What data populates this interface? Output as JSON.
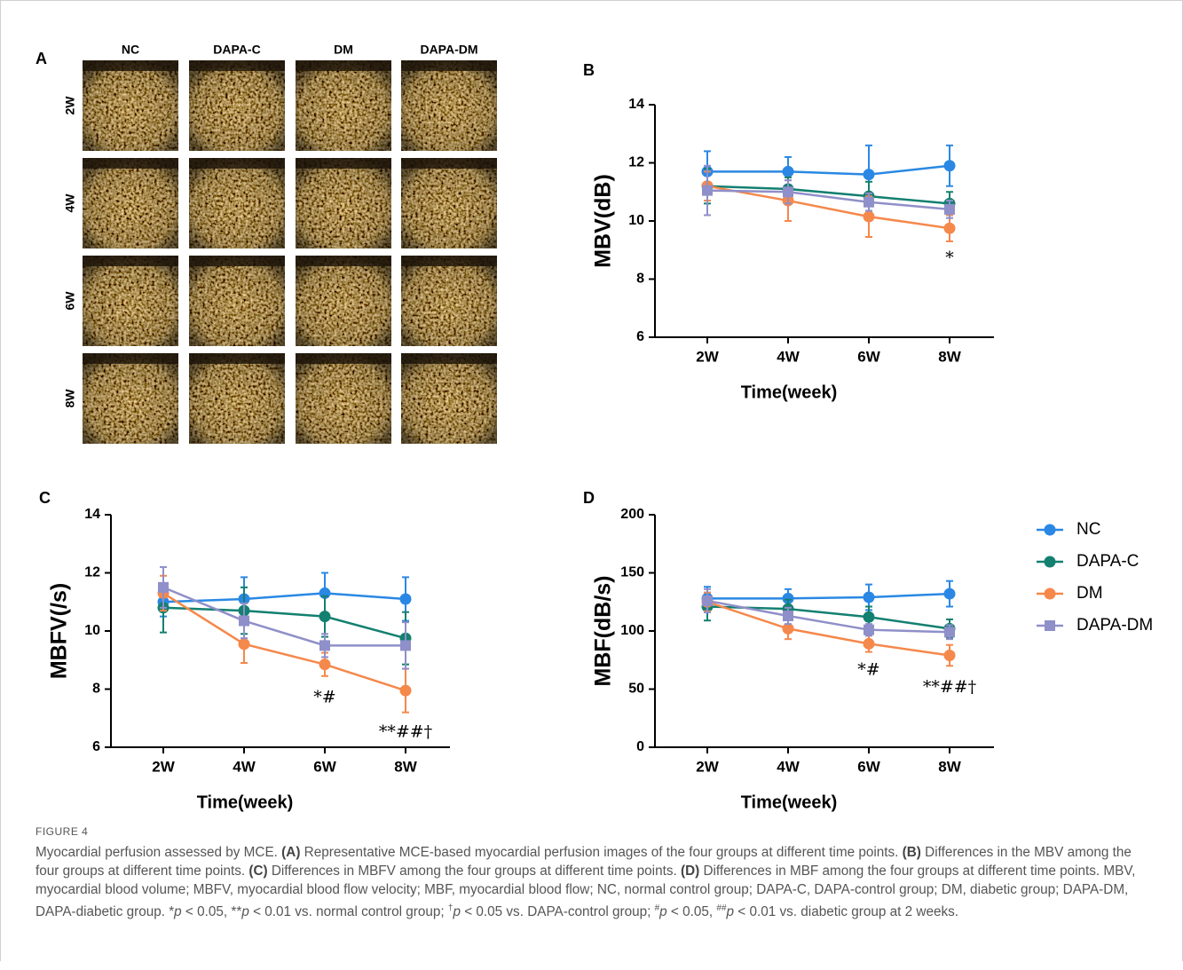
{
  "panel_a": {
    "label": "A",
    "columns": [
      "NC",
      "DAPA-C",
      "DM",
      "DAPA-DM"
    ],
    "rows": [
      "2W",
      "4W",
      "6W",
      "8W"
    ]
  },
  "chart_data": [
    {
      "type": "line",
      "panel": "B",
      "y_label": "MBV(dB)",
      "x_label": "Time(week)",
      "categories": [
        "2W",
        "4W",
        "6W",
        "8W"
      ],
      "ylim": [
        6,
        14
      ],
      "yticks": [
        6,
        8,
        10,
        12,
        14
      ],
      "series": [
        {
          "name": "NC",
          "color": "#2a88e4",
          "marker": "circle",
          "values": [
            11.7,
            11.7,
            11.6,
            11.9
          ],
          "errors": [
            0.7,
            0.5,
            1.0,
            0.7
          ]
        },
        {
          "name": "DAPA-C",
          "color": "#138070",
          "marker": "circle",
          "values": [
            11.2,
            11.1,
            10.85,
            10.6
          ],
          "errors": [
            0.6,
            0.4,
            0.5,
            0.4
          ]
        },
        {
          "name": "DM",
          "color": "#f5884b",
          "marker": "circle",
          "values": [
            11.2,
            10.7,
            10.15,
            9.75
          ],
          "errors": [
            0.5,
            0.7,
            0.7,
            0.45
          ]
        },
        {
          "name": "DAPA-DM",
          "color": "#8f8fc9",
          "marker": "square",
          "values": [
            11.05,
            11.0,
            10.65,
            10.4
          ],
          "errors": [
            0.85,
            0.4,
            0.3,
            0.3
          ]
        }
      ],
      "annotations": [
        {
          "text": "*",
          "x": 3,
          "y": 8.7
        }
      ]
    },
    {
      "type": "line",
      "panel": "C",
      "y_label": "MBFV(/s)",
      "x_label": "Time(week)",
      "categories": [
        "2W",
        "4W",
        "6W",
        "8W"
      ],
      "ylim": [
        6,
        14
      ],
      "yticks": [
        6,
        8,
        10,
        12,
        14
      ],
      "series": [
        {
          "name": "NC",
          "color": "#2a88e4",
          "marker": "circle",
          "values": [
            11.0,
            11.1,
            11.3,
            11.1
          ],
          "errors": [
            0.5,
            0.75,
            0.7,
            0.75
          ]
        },
        {
          "name": "DAPA-C",
          "color": "#138070",
          "marker": "circle",
          "values": [
            10.8,
            10.7,
            10.5,
            9.75
          ],
          "errors": [
            0.85,
            0.8,
            0.7,
            0.9
          ]
        },
        {
          "name": "DM",
          "color": "#f5884b",
          "marker": "circle",
          "values": [
            11.3,
            9.55,
            8.85,
            7.95
          ],
          "errors": [
            0.6,
            0.65,
            0.4,
            0.75
          ]
        },
        {
          "name": "DAPA-DM",
          "color": "#8f8fc9",
          "marker": "square",
          "values": [
            11.5,
            10.35,
            9.5,
            9.5
          ],
          "errors": [
            0.7,
            0.6,
            0.4,
            0.8
          ]
        }
      ],
      "annotations": [
        {
          "text": "*#",
          "x": 2,
          "y": 7.7
        },
        {
          "text": "**##†",
          "x": 3,
          "y": 6.5
        }
      ]
    },
    {
      "type": "line",
      "panel": "D",
      "y_label": "MBF(dB/s)",
      "x_label": "Time(week)",
      "categories": [
        "2W",
        "4W",
        "6W",
        "8W"
      ],
      "ylim": [
        0,
        200
      ],
      "yticks": [
        0,
        50,
        100,
        150,
        200
      ],
      "series": [
        {
          "name": "NC",
          "color": "#2a88e4",
          "marker": "circle",
          "values": [
            128,
            128,
            129,
            132
          ],
          "errors": [
            10,
            8,
            11,
            11
          ]
        },
        {
          "name": "DAPA-C",
          "color": "#138070",
          "marker": "circle",
          "values": [
            121,
            119,
            112,
            102
          ],
          "errors": [
            12,
            8,
            9,
            8
          ]
        },
        {
          "name": "DM",
          "color": "#f5884b",
          "marker": "circle",
          "values": [
            125,
            102,
            89,
            79
          ],
          "errors": [
            8,
            9,
            7,
            9
          ]
        },
        {
          "name": "DAPA-DM",
          "color": "#8f8fc9",
          "marker": "square",
          "values": [
            126,
            113,
            101,
            99
          ],
          "errors": [
            10,
            7,
            5,
            6
          ]
        }
      ],
      "annotations": [
        {
          "text": "*#",
          "x": 2,
          "y": 66
        },
        {
          "text": "**##†",
          "x": 3,
          "y": 51
        }
      ]
    }
  ],
  "caption": {
    "label": "FIGURE 4",
    "runs": [
      {
        "text": "Myocardial perfusion assessed by MCE. "
      },
      {
        "text": "(A)",
        "bold": true
      },
      {
        "text": " Representative MCE-based myocardial perfusion images of the four groups at different time points. "
      },
      {
        "text": "(B)",
        "bold": true
      },
      {
        "text": " Differences in the MBV among the four groups at different time points. "
      },
      {
        "text": "(C)",
        "bold": true
      },
      {
        "text": " Differences in MBFV among the four groups at different time points. "
      },
      {
        "text": "(D)",
        "bold": true
      },
      {
        "text": " Differences in MBF among the four groups at different time points. MBV, myocardial blood volume; MBFV, myocardial blood flow velocity; MBF, myocardial blood flow; NC, normal control group; DAPA-C, DAPA-control group; DM, diabetic group; DAPA-DM, DAPA-diabetic group. *"
      },
      {
        "text": "p",
        "italic": true
      },
      {
        "text": " < 0.05, **"
      },
      {
        "text": "p",
        "italic": true
      },
      {
        "text": " < 0.01 vs. normal control group; "
      },
      {
        "text": "†",
        "sup": true
      },
      {
        "text": "p",
        "italic": true
      },
      {
        "text": " < 0.05 vs. DAPA-control group; "
      },
      {
        "text": "#",
        "sup": true
      },
      {
        "text": "p",
        "italic": true
      },
      {
        "text": " < 0.05, "
      },
      {
        "text": "##",
        "sup": true
      },
      {
        "text": "p",
        "italic": true
      },
      {
        "text": " < 0.01 vs. diabetic group at 2 weeks."
      }
    ]
  }
}
